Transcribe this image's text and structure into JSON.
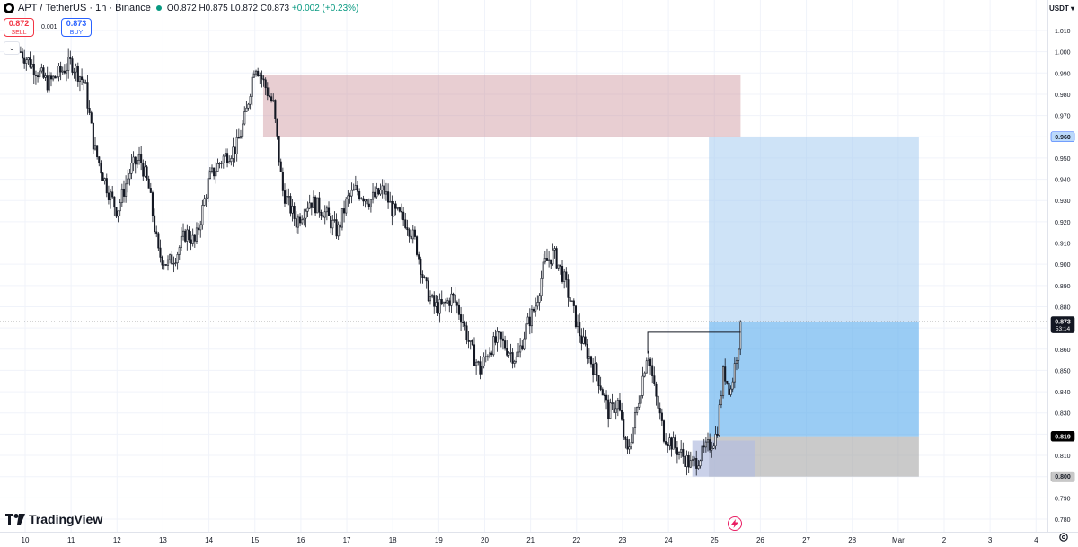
{
  "legend": {
    "symbol": "APT",
    "separator": "/",
    "description": "TetherUS · 1h · Binance",
    "open": "O0.872",
    "high": "H0.875",
    "low": "L0.872",
    "close": "C0.873",
    "change": "+0.002 (+0.23%)"
  },
  "trade": {
    "sell_price": "0.872",
    "sell_label": "SELL",
    "buy_price": "0.873",
    "buy_label": "BUY",
    "spread": "0.001"
  },
  "currency": "USDT",
  "countdown": "53:14",
  "brand": "TradingView",
  "chart_data": {
    "type": "candlestick",
    "timeframe": "1h",
    "x_ticks": [
      "10",
      "11",
      "12",
      "13",
      "14",
      "15",
      "16",
      "17",
      "18",
      "19",
      "20",
      "21",
      "22",
      "23",
      "24",
      "25",
      "26",
      "27",
      "28",
      "Mar",
      "2",
      "3",
      "4"
    ],
    "y_ticks": [
      "0.780",
      "0.790",
      "0.800",
      "0.810",
      "0.820",
      "0.830",
      "0.840",
      "0.850",
      "0.860",
      "0.870",
      "0.880",
      "0.890",
      "0.900",
      "0.910",
      "0.920",
      "0.930",
      "0.940",
      "0.950",
      "0.960",
      "0.970",
      "0.980",
      "0.990",
      "1.000",
      "1.010"
    ],
    "ylim": [
      0.775,
      1.018
    ],
    "xlim_days": [
      9.85,
      32.3
    ],
    "price_path": [
      [
        9.9,
        1.0
      ],
      [
        10.5,
        0.985
      ],
      [
        11.0,
        0.995
      ],
      [
        11.3,
        0.985
      ],
      [
        11.5,
        0.955
      ],
      [
        11.8,
        0.935
      ],
      [
        12.0,
        0.925
      ],
      [
        12.3,
        0.945
      ],
      [
        12.5,
        0.95
      ],
      [
        12.7,
        0.935
      ],
      [
        12.9,
        0.905
      ],
      [
        13.1,
        0.9
      ],
      [
        13.3,
        0.905
      ],
      [
        13.5,
        0.915
      ],
      [
        13.7,
        0.91
      ],
      [
        14.0,
        0.94
      ],
      [
        14.3,
        0.95
      ],
      [
        14.6,
        0.955
      ],
      [
        14.8,
        0.97
      ],
      [
        15.0,
        0.995
      ],
      [
        15.2,
        0.985
      ],
      [
        15.4,
        0.975
      ],
      [
        15.6,
        0.935
      ],
      [
        15.9,
        0.92
      ],
      [
        16.2,
        0.93
      ],
      [
        16.5,
        0.925
      ],
      [
        16.8,
        0.915
      ],
      [
        17.0,
        0.93
      ],
      [
        17.2,
        0.935
      ],
      [
        17.5,
        0.93
      ],
      [
        17.8,
        0.935
      ],
      [
        18.0,
        0.925
      ],
      [
        18.3,
        0.92
      ],
      [
        18.5,
        0.91
      ],
      [
        18.7,
        0.89
      ],
      [
        18.9,
        0.88
      ],
      [
        19.1,
        0.88
      ],
      [
        19.3,
        0.885
      ],
      [
        19.5,
        0.875
      ],
      [
        19.7,
        0.86
      ],
      [
        19.9,
        0.85
      ],
      [
        20.1,
        0.86
      ],
      [
        20.3,
        0.865
      ],
      [
        20.5,
        0.86
      ],
      [
        20.7,
        0.855
      ],
      [
        20.9,
        0.87
      ],
      [
        21.1,
        0.88
      ],
      [
        21.3,
        0.9
      ],
      [
        21.5,
        0.905
      ],
      [
        21.7,
        0.895
      ],
      [
        21.9,
        0.88
      ],
      [
        22.1,
        0.865
      ],
      [
        22.3,
        0.855
      ],
      [
        22.5,
        0.845
      ],
      [
        22.7,
        0.83
      ],
      [
        22.9,
        0.835
      ],
      [
        23.1,
        0.81
      ],
      [
        23.3,
        0.83
      ],
      [
        23.55,
        0.86
      ],
      [
        23.7,
        0.84
      ],
      [
        23.9,
        0.82
      ],
      [
        24.1,
        0.815
      ],
      [
        24.3,
        0.81
      ],
      [
        24.5,
        0.805
      ],
      [
        24.7,
        0.81
      ],
      [
        24.9,
        0.815
      ],
      [
        25.05,
        0.82
      ],
      [
        25.2,
        0.85
      ],
      [
        25.35,
        0.84
      ],
      [
        25.5,
        0.86
      ],
      [
        25.6,
        0.873
      ]
    ],
    "zones": [
      {
        "type": "supply",
        "x_start": 15.18,
        "x_end": 25.57,
        "y_low": 0.96,
        "y_high": 0.989,
        "color": "#c78a93"
      },
      {
        "type": "target",
        "x_start": 24.88,
        "x_end": 29.45,
        "y_low": 0.873,
        "y_high": 0.96,
        "color": "#9ec8f0"
      },
      {
        "type": "entry",
        "x_start": 24.88,
        "x_end": 29.45,
        "y_low": 0.819,
        "y_high": 0.873,
        "color": "#64b0ee"
      },
      {
        "type": "stop",
        "x_start": 24.88,
        "x_end": 29.45,
        "y_low": 0.8,
        "y_high": 0.819,
        "color": "#a6a6a6"
      },
      {
        "type": "demand",
        "x_start": 24.52,
        "x_end": 25.88,
        "y_low": 0.8,
        "y_high": 0.817,
        "color": "#b3bde0"
      }
    ],
    "lines": [
      {
        "name": "swing-high",
        "x_start": 23.55,
        "x_end": 25.57,
        "y": 0.868
      }
    ],
    "price_labels": [
      {
        "value": "0.960",
        "style": "blue"
      },
      {
        "value": "0.873",
        "style": "dark"
      },
      {
        "value": "0.819",
        "style": "black"
      },
      {
        "value": "0.800",
        "style": "gray"
      }
    ],
    "last_price": 0.873,
    "colors": {
      "up": "#131722",
      "down": "#131722",
      "grid": "#f0f3fa",
      "axis_text": "#131722"
    }
  }
}
